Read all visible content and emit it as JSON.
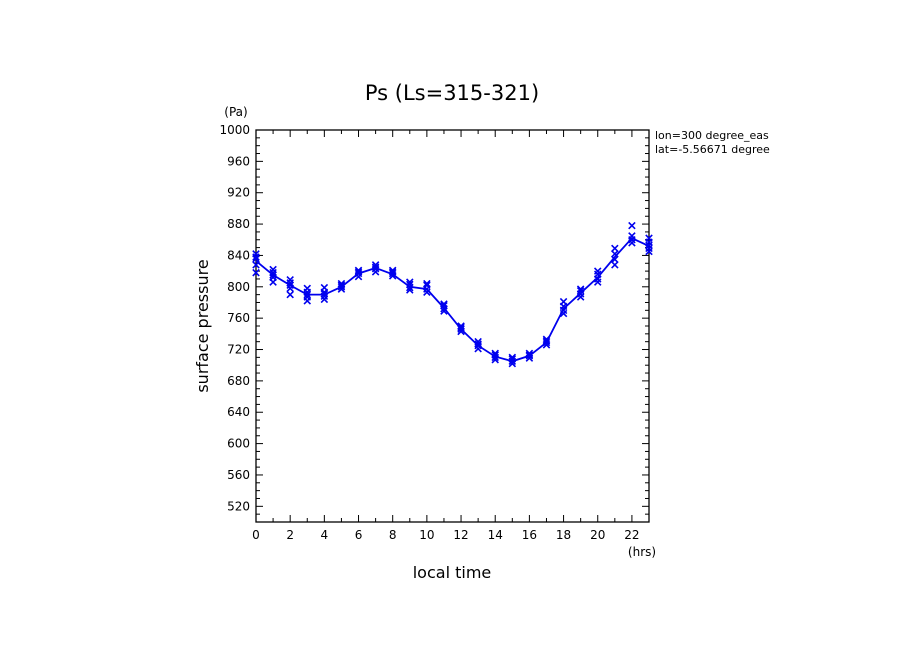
{
  "chart_data": {
    "type": "scatter",
    "title": "Ps (Ls=315-321)",
    "xlabel": "local time",
    "ylabel": "surface pressure",
    "x_unit": "(hrs)",
    "y_unit": "(Pa)",
    "xlim": [
      0,
      23
    ],
    "ylim": [
      500,
      1000
    ],
    "x_ticks": [
      0,
      2,
      4,
      6,
      8,
      10,
      12,
      14,
      16,
      18,
      20,
      22
    ],
    "y_ticks": [
      520,
      560,
      600,
      640,
      680,
      720,
      760,
      800,
      840,
      880,
      920,
      960,
      1000
    ],
    "annotations": [
      "lon=300 degree_eas",
      "lat=-5.56671 degree"
    ],
    "series": [
      {
        "mark": "line",
        "color": "#0000ee",
        "x": [
          0,
          1,
          2,
          3,
          4,
          5,
          6,
          7,
          8,
          9,
          10,
          11,
          12,
          13,
          14,
          15,
          16,
          17,
          18,
          19,
          20,
          21,
          22,
          23
        ],
        "y": [
          833,
          815,
          802,
          790,
          790,
          800,
          817,
          824,
          816,
          800,
          797,
          773,
          746,
          725,
          711,
          705,
          712,
          729,
          772,
          792,
          812,
          838,
          862,
          852
        ]
      },
      {
        "mark": "x",
        "color": "#0000ee",
        "points": [
          [
            0,
            818
          ],
          [
            0,
            828
          ],
          [
            0,
            838
          ],
          [
            0,
            842
          ],
          [
            0,
            836
          ],
          [
            1,
            806
          ],
          [
            1,
            812
          ],
          [
            1,
            818
          ],
          [
            1,
            822
          ],
          [
            1,
            815
          ],
          [
            2,
            790
          ],
          [
            2,
            798
          ],
          [
            2,
            805
          ],
          [
            2,
            809
          ],
          [
            2,
            802
          ],
          [
            3,
            782
          ],
          [
            3,
            787
          ],
          [
            3,
            793
          ],
          [
            3,
            798
          ],
          [
            3,
            790
          ],
          [
            4,
            784
          ],
          [
            4,
            788
          ],
          [
            4,
            793
          ],
          [
            4,
            799
          ],
          [
            4,
            791
          ],
          [
            5,
            797
          ],
          [
            5,
            800
          ],
          [
            5,
            804
          ],
          [
            5,
            802
          ],
          [
            6,
            813
          ],
          [
            6,
            817
          ],
          [
            6,
            821
          ],
          [
            6,
            819
          ],
          [
            7,
            819
          ],
          [
            7,
            823
          ],
          [
            7,
            828
          ],
          [
            7,
            825
          ],
          [
            8,
            814
          ],
          [
            8,
            817
          ],
          [
            8,
            821
          ],
          [
            8,
            819
          ],
          [
            9,
            796
          ],
          [
            9,
            799
          ],
          [
            9,
            803
          ],
          [
            9,
            806
          ],
          [
            10,
            793
          ],
          [
            10,
            797
          ],
          [
            10,
            802
          ],
          [
            10,
            804
          ],
          [
            11,
            769
          ],
          [
            11,
            772
          ],
          [
            11,
            776
          ],
          [
            11,
            778
          ],
          [
            12,
            743
          ],
          [
            12,
            746
          ],
          [
            12,
            750
          ],
          [
            12,
            748
          ],
          [
            13,
            721
          ],
          [
            13,
            725
          ],
          [
            13,
            730
          ],
          [
            13,
            727
          ],
          [
            14,
            707
          ],
          [
            14,
            710
          ],
          [
            14,
            713
          ],
          [
            14,
            715
          ],
          [
            15,
            702
          ],
          [
            15,
            705
          ],
          [
            15,
            708
          ],
          [
            15,
            710
          ],
          [
            16,
            709
          ],
          [
            16,
            712
          ],
          [
            16,
            715
          ],
          [
            16,
            713
          ],
          [
            17,
            726
          ],
          [
            17,
            729
          ],
          [
            17,
            733
          ],
          [
            17,
            731
          ],
          [
            18,
            766
          ],
          [
            18,
            770
          ],
          [
            18,
            775
          ],
          [
            18,
            781
          ],
          [
            19,
            787
          ],
          [
            19,
            791
          ],
          [
            19,
            795
          ],
          [
            19,
            797
          ],
          [
            20,
            806
          ],
          [
            20,
            810
          ],
          [
            20,
            816
          ],
          [
            20,
            820
          ],
          [
            21,
            828
          ],
          [
            21,
            835
          ],
          [
            21,
            842
          ],
          [
            21,
            849
          ],
          [
            22,
            856
          ],
          [
            22,
            860
          ],
          [
            22,
            865
          ],
          [
            22,
            878
          ],
          [
            23,
            845
          ],
          [
            23,
            849
          ],
          [
            23,
            853
          ],
          [
            23,
            857
          ],
          [
            23,
            862
          ]
        ]
      }
    ]
  }
}
